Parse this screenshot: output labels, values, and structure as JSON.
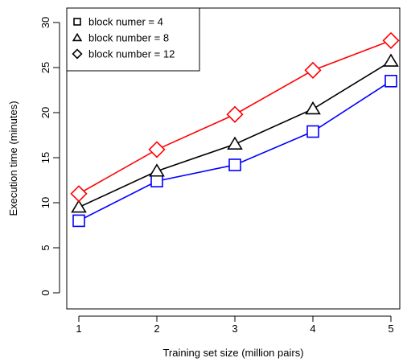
{
  "chart_data": {
    "type": "line",
    "title": "",
    "xlabel": "Training set size (million pairs)",
    "ylabel": "Execution time (minutes)",
    "x": [
      1,
      2,
      3,
      4,
      5
    ],
    "xticks": [
      "1",
      "2",
      "3",
      "4",
      "5"
    ],
    "yticks": [
      "0",
      "5",
      "10",
      "15",
      "20",
      "25",
      "30"
    ],
    "xlim": [
      1,
      5
    ],
    "ylim": [
      0,
      30
    ],
    "grid": false,
    "legend_position": "top-left",
    "series": [
      {
        "name": "block numer = 4",
        "marker": "square",
        "color": "#0000ff",
        "values": [
          8.0,
          12.4,
          14.2,
          17.9,
          23.5
        ]
      },
      {
        "name": "block number = 8",
        "marker": "triangle",
        "color": "#000000",
        "values": [
          9.5,
          13.5,
          16.5,
          20.4,
          25.7
        ]
      },
      {
        "name": "block number = 12",
        "marker": "diamond",
        "color": "#ff0000",
        "values": [
          11.0,
          15.9,
          19.8,
          24.7,
          28.0
        ]
      }
    ]
  }
}
